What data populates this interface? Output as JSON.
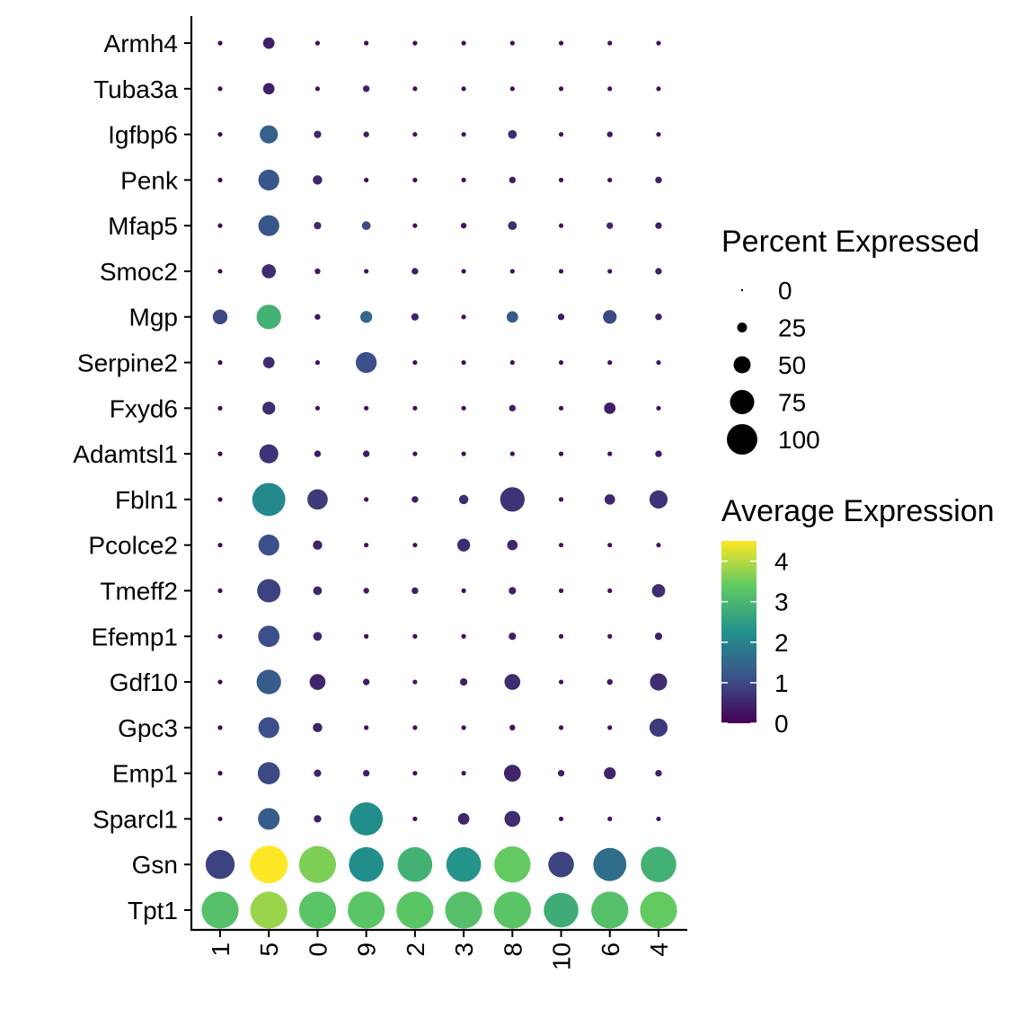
{
  "chart_data": {
    "type": "dotplot",
    "title": "",
    "xlabel": "",
    "ylabel": "",
    "clusters": [
      "1",
      "5",
      "0",
      "9",
      "2",
      "3",
      "8",
      "10",
      "6",
      "4"
    ],
    "genes": [
      "Armh4",
      "Tuba3a",
      "Igfbp6",
      "Penk",
      "Mfap5",
      "Smoc2",
      "Mgp",
      "Serpine2",
      "Fxyd6",
      "Adamtsl1",
      "Fbln1",
      "Pcolce2",
      "Tmeff2",
      "Efemp1",
      "Gdf10",
      "Gpc3",
      "Emp1",
      "Sparcl1",
      "Gsn",
      "Tpt1"
    ],
    "percent_expressed": {
      "Armh4": [
        2,
        12,
        2,
        2,
        2,
        2,
        2,
        2,
        2,
        2
      ],
      "Tuba3a": [
        2,
        12,
        2,
        4,
        2,
        2,
        2,
        2,
        2,
        2
      ],
      "Igfbp6": [
        2,
        30,
        5,
        3,
        2,
        2,
        7,
        2,
        3,
        2
      ],
      "Penk": [
        2,
        40,
        8,
        2,
        2,
        2,
        4,
        2,
        2,
        4
      ],
      "Mfap5": [
        2,
        40,
        5,
        7,
        2,
        3,
        7,
        2,
        4,
        4
      ],
      "Smoc2": [
        2,
        18,
        3,
        2,
        4,
        2,
        2,
        2,
        2,
        4
      ],
      "Mgp": [
        20,
        55,
        3,
        13,
        5,
        2,
        12,
        4,
        17,
        4
      ],
      "Serpine2": [
        2,
        12,
        2,
        40,
        2,
        2,
        2,
        2,
        2,
        2
      ],
      "Fxyd6": [
        2,
        15,
        2,
        2,
        2,
        2,
        4,
        2,
        12,
        2
      ],
      "Adamtsl1": [
        2,
        33,
        4,
        4,
        2,
        2,
        2,
        2,
        2,
        4
      ],
      "Fbln1": [
        2,
        100,
        38,
        2,
        4,
        8,
        55,
        2,
        10,
        30
      ],
      "Pcolce2": [
        2,
        40,
        8,
        2,
        2,
        15,
        10,
        2,
        2,
        2
      ],
      "Tmeff2": [
        2,
        50,
        7,
        3,
        4,
        2,
        5,
        2,
        2,
        16
      ],
      "Efemp1": [
        2,
        42,
        7,
        2,
        2,
        2,
        5,
        2,
        2,
        5
      ],
      "Gdf10": [
        2,
        55,
        23,
        4,
        2,
        5,
        23,
        2,
        3,
        27
      ],
      "Gpc3": [
        2,
        40,
        8,
        2,
        2,
        2,
        3,
        2,
        2,
        30
      ],
      "Emp1": [
        2,
        45,
        5,
        4,
        2,
        2,
        26,
        4,
        13,
        4
      ],
      "Sparcl1": [
        2,
        43,
        5,
        100,
        2,
        12,
        23,
        2,
        2,
        2
      ],
      "Gsn": [
        77,
        130,
        125,
        110,
        110,
        110,
        120,
        60,
        100,
        115
      ],
      "Tpt1": [
        125,
        125,
        125,
        125,
        125,
        125,
        125,
        110,
        125,
        125
      ]
    },
    "average_expression": {
      "Armh4": [
        0.1,
        0.4,
        0.2,
        0.2,
        0.2,
        0.2,
        0.2,
        0.2,
        0.2,
        0.2
      ],
      "Tuba3a": [
        0.1,
        0.4,
        0.2,
        0.4,
        0.2,
        0.2,
        0.2,
        0.2,
        0.2,
        0.2
      ],
      "Igfbp6": [
        0.1,
        1.4,
        0.5,
        0.4,
        0.2,
        0.2,
        0.6,
        0.2,
        0.3,
        0.2
      ],
      "Penk": [
        0.1,
        1.2,
        0.5,
        0.2,
        0.2,
        0.2,
        0.4,
        0.2,
        0.2,
        0.4
      ],
      "Mfap5": [
        0.1,
        1.2,
        0.5,
        1.0,
        0.2,
        0.3,
        0.6,
        0.2,
        0.5,
        0.4
      ],
      "Smoc2": [
        0.1,
        0.6,
        0.3,
        0.2,
        0.4,
        0.2,
        0.2,
        0.2,
        0.2,
        0.4
      ],
      "Mgp": [
        1.0,
        2.9,
        0.3,
        1.5,
        0.5,
        0.2,
        1.3,
        0.4,
        1.0,
        0.4
      ],
      "Serpine2": [
        0.1,
        0.6,
        0.2,
        1.1,
        0.2,
        0.2,
        0.2,
        0.2,
        0.2,
        0.2
      ],
      "Fxyd6": [
        0.1,
        0.6,
        0.2,
        0.2,
        0.2,
        0.2,
        0.4,
        0.2,
        0.4,
        0.2
      ],
      "Adamtsl1": [
        0.1,
        0.7,
        0.4,
        0.4,
        0.2,
        0.2,
        0.2,
        0.2,
        0.2,
        0.4
      ],
      "Fbln1": [
        0.1,
        2.1,
        0.8,
        0.2,
        0.4,
        0.6,
        0.7,
        0.2,
        0.5,
        0.7
      ],
      "Pcolce2": [
        0.1,
        1.1,
        0.5,
        0.2,
        0.2,
        0.6,
        0.5,
        0.2,
        0.2,
        0.2
      ],
      "Tmeff2": [
        0.1,
        0.9,
        0.5,
        0.3,
        0.4,
        0.2,
        0.4,
        0.2,
        0.2,
        0.6
      ],
      "Efemp1": [
        0.1,
        1.1,
        0.5,
        0.2,
        0.2,
        0.2,
        0.4,
        0.2,
        0.2,
        0.4
      ],
      "Gdf10": [
        0.1,
        1.3,
        0.5,
        0.4,
        0.2,
        0.4,
        0.6,
        0.2,
        0.3,
        0.6
      ],
      "Gpc3": [
        0.1,
        1.1,
        0.5,
        0.2,
        0.2,
        0.2,
        0.2,
        0.2,
        0.2,
        0.8
      ],
      "Emp1": [
        0.1,
        1.0,
        0.4,
        0.4,
        0.2,
        0.2,
        0.5,
        0.4,
        0.5,
        0.4
      ],
      "Sparcl1": [
        0.1,
        1.3,
        0.4,
        2.2,
        0.2,
        0.5,
        0.6,
        0.2,
        0.2,
        0.2
      ],
      "Gsn": [
        0.9,
        4.5,
        3.6,
        2.2,
        2.9,
        2.3,
        3.4,
        0.9,
        1.6,
        2.9
      ],
      "Tpt1": [
        3.2,
        3.8,
        3.3,
        3.3,
        3.3,
        3.2,
        3.3,
        2.8,
        3.2,
        3.4
      ]
    },
    "size_legend": {
      "title": "Percent Expressed",
      "labels": [
        "0",
        "25",
        "50",
        "75",
        "100"
      ],
      "values": [
        0,
        25,
        50,
        75,
        100
      ]
    },
    "color_legend": {
      "title": "Average Expression",
      "labels": [
        "4",
        "3",
        "2",
        "1",
        "0"
      ],
      "values": [
        4,
        3,
        2,
        1,
        0
      ],
      "range": [
        0,
        4.5
      ],
      "colors": [
        "#440154",
        "#3b528b",
        "#21918c",
        "#5ec962",
        "#fde725"
      ]
    },
    "grid": false
  }
}
